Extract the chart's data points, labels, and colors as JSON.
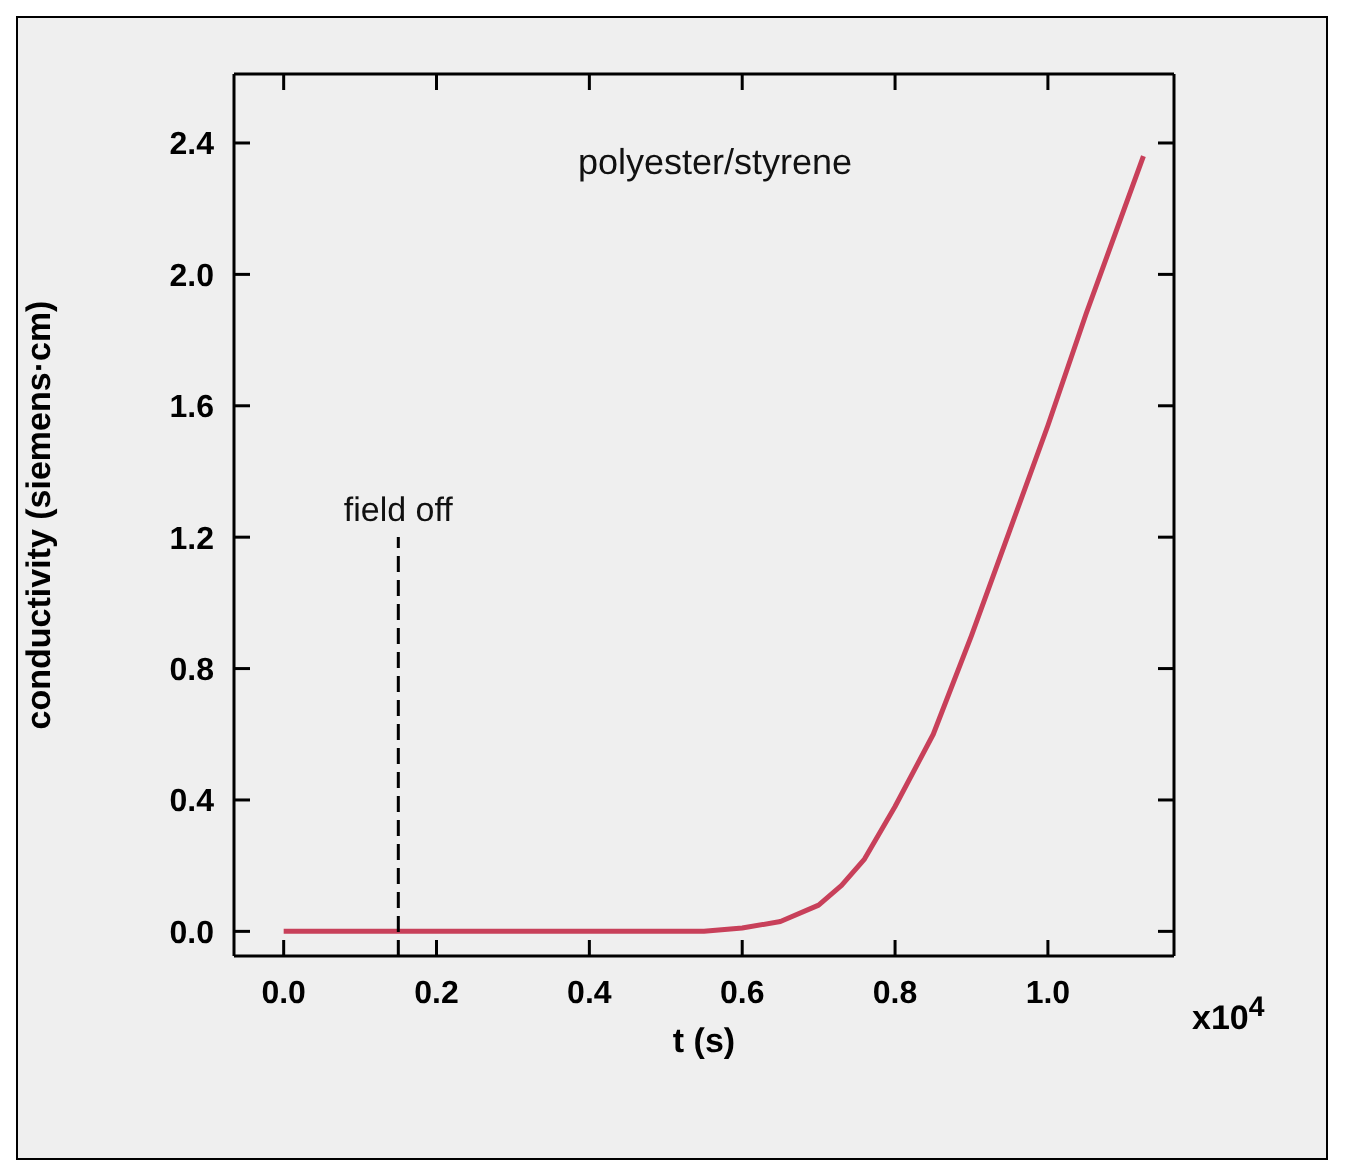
{
  "chart_data": {
    "type": "line",
    "title": "polyester/styrene",
    "xlabel": "t (s)",
    "ylabel": "conductivity (siemens·cm)",
    "x": [
      0,
      0.1,
      0.2,
      0.3,
      0.4,
      0.5,
      0.55,
      0.6,
      0.65,
      0.7,
      0.73,
      0.76,
      0.8,
      0.85,
      0.9,
      0.95,
      1.0,
      1.05,
      1.1,
      1.125
    ],
    "series": [
      {
        "color": "#c8405a",
        "values": [
          0,
          0,
          0,
          0,
          0,
          0,
          0,
          0.01,
          0.03,
          0.08,
          0.14,
          0.22,
          0.38,
          0.6,
          0.9,
          1.22,
          1.54,
          1.88,
          2.2,
          2.36
        ]
      }
    ],
    "xlim": [
      -0.065,
      1.165
    ],
    "ylim": [
      -0.075,
      2.61
    ],
    "xticks": [
      {
        "value": 0,
        "label": "0.0"
      },
      {
        "value": 0.2,
        "label": "0.2"
      },
      {
        "value": 0.4,
        "label": "0.4"
      },
      {
        "value": 0.6,
        "label": "0.6"
      },
      {
        "value": 0.8,
        "label": "0.8"
      },
      {
        "value": 1,
        "label": "1.0"
      }
    ],
    "yticks": [
      {
        "value": 0,
        "label": "0.0"
      },
      {
        "value": 0.4,
        "label": "0.4"
      },
      {
        "value": 0.8,
        "label": "0.8"
      },
      {
        "value": 1.2,
        "label": "1.2"
      },
      {
        "value": 1.6,
        "label": "1.6"
      },
      {
        "value": 2,
        "label": "2.0"
      },
      {
        "value": 2.4,
        "label": "2.4"
      }
    ],
    "ref_lines": [
      {
        "axis": "x",
        "value": 0.15,
        "label": "field off",
        "line_style": "dashed",
        "color": "#000000"
      }
    ],
    "annotations": [
      "x10$^{4}$"
    ],
    "marker": "none",
    "line_style": "solid"
  }
}
